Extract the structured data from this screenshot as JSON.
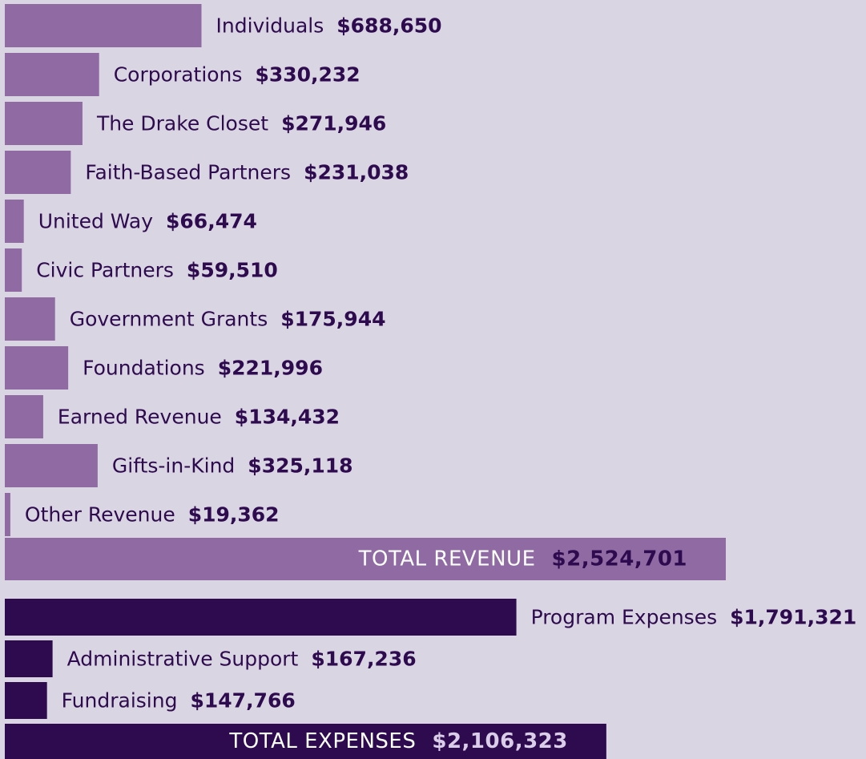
{
  "chart_data": [
    {
      "type": "bar",
      "orientation": "horizontal",
      "color": "#8f6aa3",
      "label_color": "#2e0a4e",
      "categories": [
        "Individuals",
        "Corporations",
        "The Drake Closet",
        "Faith-Based Partners",
        "United Way",
        "Civic Partners",
        "Government Grants",
        "Foundations",
        "Earned Revenue",
        "Gifts-in-Kind",
        "Other Revenue"
      ],
      "values": [
        688650,
        330232,
        271946,
        231038,
        66474,
        59510,
        175944,
        221996,
        134432,
        325118,
        19362
      ],
      "value_labels": [
        "$688,650",
        "$330,232",
        "$271,946",
        "$231,038",
        "$66,474",
        "$59,510",
        "$175,944",
        "$221,996",
        "$134,432",
        "$325,118",
        "$19,362"
      ],
      "total": {
        "label": "TOTAL REVENUE",
        "value": 2524701,
        "value_label": "$2,524,701",
        "label_color": "#ffffff",
        "value_color": "#2e0a4e"
      }
    },
    {
      "type": "bar",
      "orientation": "horizontal",
      "color": "#2e0a4e",
      "label_color": "#2e0a4e",
      "categories": [
        "Program Expenses",
        "Administrative Support",
        "Fundraising"
      ],
      "values": [
        1791321,
        167236,
        147766
      ],
      "value_labels": [
        "$1,791,321",
        "$167,236",
        "$147,766"
      ],
      "total": {
        "label": "TOTAL EXPENSES",
        "value": 2106323,
        "value_label": "$2,106,323",
        "label_color": "#ffffff",
        "value_color": "#d9cde8"
      }
    }
  ]
}
